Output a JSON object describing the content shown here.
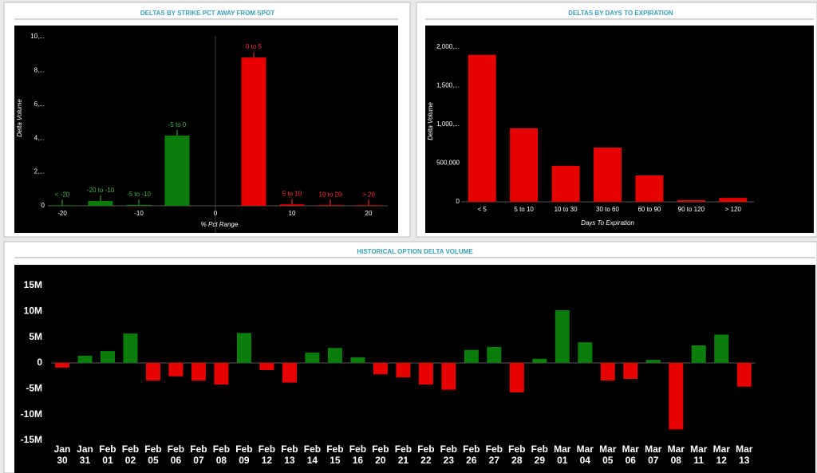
{
  "chart_data": [
    {
      "type": "bar",
      "title": "DELTAS BY STRIKE PCT AWAY FROM SPOT",
      "x_label": "% Pct Range",
      "y_label": "Delta Volume",
      "x": [
        -20,
        -15,
        -10,
        -5,
        5,
        10,
        15,
        20
      ],
      "labels": [
        "< -20",
        "-20 to -10",
        "-5 to -10",
        "-5 to 0",
        "0 to 5",
        "5 to 10",
        "10 to 20",
        "> 20"
      ],
      "values": [
        30,
        280,
        50,
        4150,
        8770,
        80,
        40,
        30
      ],
      "colors": [
        "#0a7d0a",
        "#0a7d0a",
        "#0a7d0a",
        "#0a7d0a",
        "#e60000",
        "#e60000",
        "#e60000",
        "#e60000"
      ],
      "label_colors": [
        "#44b044",
        "#44b044",
        "#44b044",
        "#44b044",
        "#ff3030",
        "#ff3030",
        "#ff3030",
        "#ff3030"
      ],
      "xlim": [
        -25,
        22.5
      ],
      "xticks": [
        -20,
        -10,
        0,
        10,
        20
      ],
      "ylim": [
        0,
        10000
      ],
      "yticks": [
        0,
        {
          "value": 2000,
          "label": "2,..."
        },
        {
          "value": 4000,
          "label": "4,..."
        },
        {
          "value": 6000,
          "label": "6,..."
        },
        {
          "value": 8000,
          "label": "8,..."
        },
        {
          "value": 10000,
          "label": "10,..."
        }
      ]
    },
    {
      "type": "bar",
      "title": "DELTAS BY DAYS TO EXPIRATION",
      "x_label": "Days To Expiration",
      "y_label": "Delta Volume",
      "categories": [
        "< 5",
        "5 to 10",
        "10 to 30",
        "30 to 60",
        "60 to 90",
        "90 to 120",
        "> 120"
      ],
      "values": [
        1900000,
        950000,
        465000,
        700000,
        340000,
        20000,
        50000
      ],
      "color": "#e60000",
      "ylim": [
        0,
        2000000
      ],
      "yticks": [
        0,
        {
          "value": 500000,
          "label": "500,000"
        },
        {
          "value": 1000000,
          "label": "1,000,..."
        },
        {
          "value": 1500000,
          "label": "1,500,..."
        },
        {
          "value": 2000000,
          "label": "2,000,..."
        }
      ]
    },
    {
      "type": "bar",
      "title": "HISTORICAL OPTION DELTA VOLUME",
      "categories": [
        [
          "Jan",
          "30"
        ],
        [
          "Jan",
          "31"
        ],
        [
          "Feb",
          "01"
        ],
        [
          "Feb",
          "02"
        ],
        [
          "Feb",
          "05"
        ],
        [
          "Feb",
          "06"
        ],
        [
          "Feb",
          "07"
        ],
        [
          "Feb",
          "08"
        ],
        [
          "Feb",
          "09"
        ],
        [
          "Feb",
          "12"
        ],
        [
          "Feb",
          "13"
        ],
        [
          "Feb",
          "14"
        ],
        [
          "Feb",
          "15"
        ],
        [
          "Feb",
          "16"
        ],
        [
          "Feb",
          "20"
        ],
        [
          "Feb",
          "21"
        ],
        [
          "Feb",
          "22"
        ],
        [
          "Feb",
          "23"
        ],
        [
          "Feb",
          "26"
        ],
        [
          "Feb",
          "27"
        ],
        [
          "Feb",
          "28"
        ],
        [
          "Feb",
          "29"
        ],
        [
          "Mar",
          "01"
        ],
        [
          "Mar",
          "04"
        ],
        [
          "Mar",
          "05"
        ],
        [
          "Mar",
          "06"
        ],
        [
          "Mar",
          "07"
        ],
        [
          "Mar",
          "08"
        ],
        [
          "Mar",
          "11"
        ],
        [
          "Mar",
          "12"
        ],
        [
          "Mar",
          "13"
        ]
      ],
      "values": [
        -0.9,
        1.4,
        2.3,
        5.7,
        -3.4,
        -2.6,
        -3.4,
        -4.2,
        5.8,
        -1.4,
        -3.8,
        2.0,
        2.9,
        1.1,
        -2.2,
        -2.8,
        -4.2,
        -5.2,
        2.5,
        3.1,
        -5.7,
        0.8,
        10.2,
        4.0,
        -3.4,
        -3.1,
        0.6,
        -12.9,
        3.4,
        5.5,
        -4.6
      ],
      "positive_color": "#0a7d0a",
      "negative_color": "#e60000",
      "ylim": [
        -15,
        15
      ],
      "yticks": [
        {
          "value": -15,
          "label": "-15M"
        },
        {
          "value": -10,
          "label": "-10M"
        },
        {
          "value": -5,
          "label": "-5M"
        },
        0,
        {
          "value": 5,
          "label": "5M"
        },
        {
          "value": 10,
          "label": "10M"
        },
        {
          "value": 15,
          "label": "15M"
        }
      ]
    }
  ]
}
